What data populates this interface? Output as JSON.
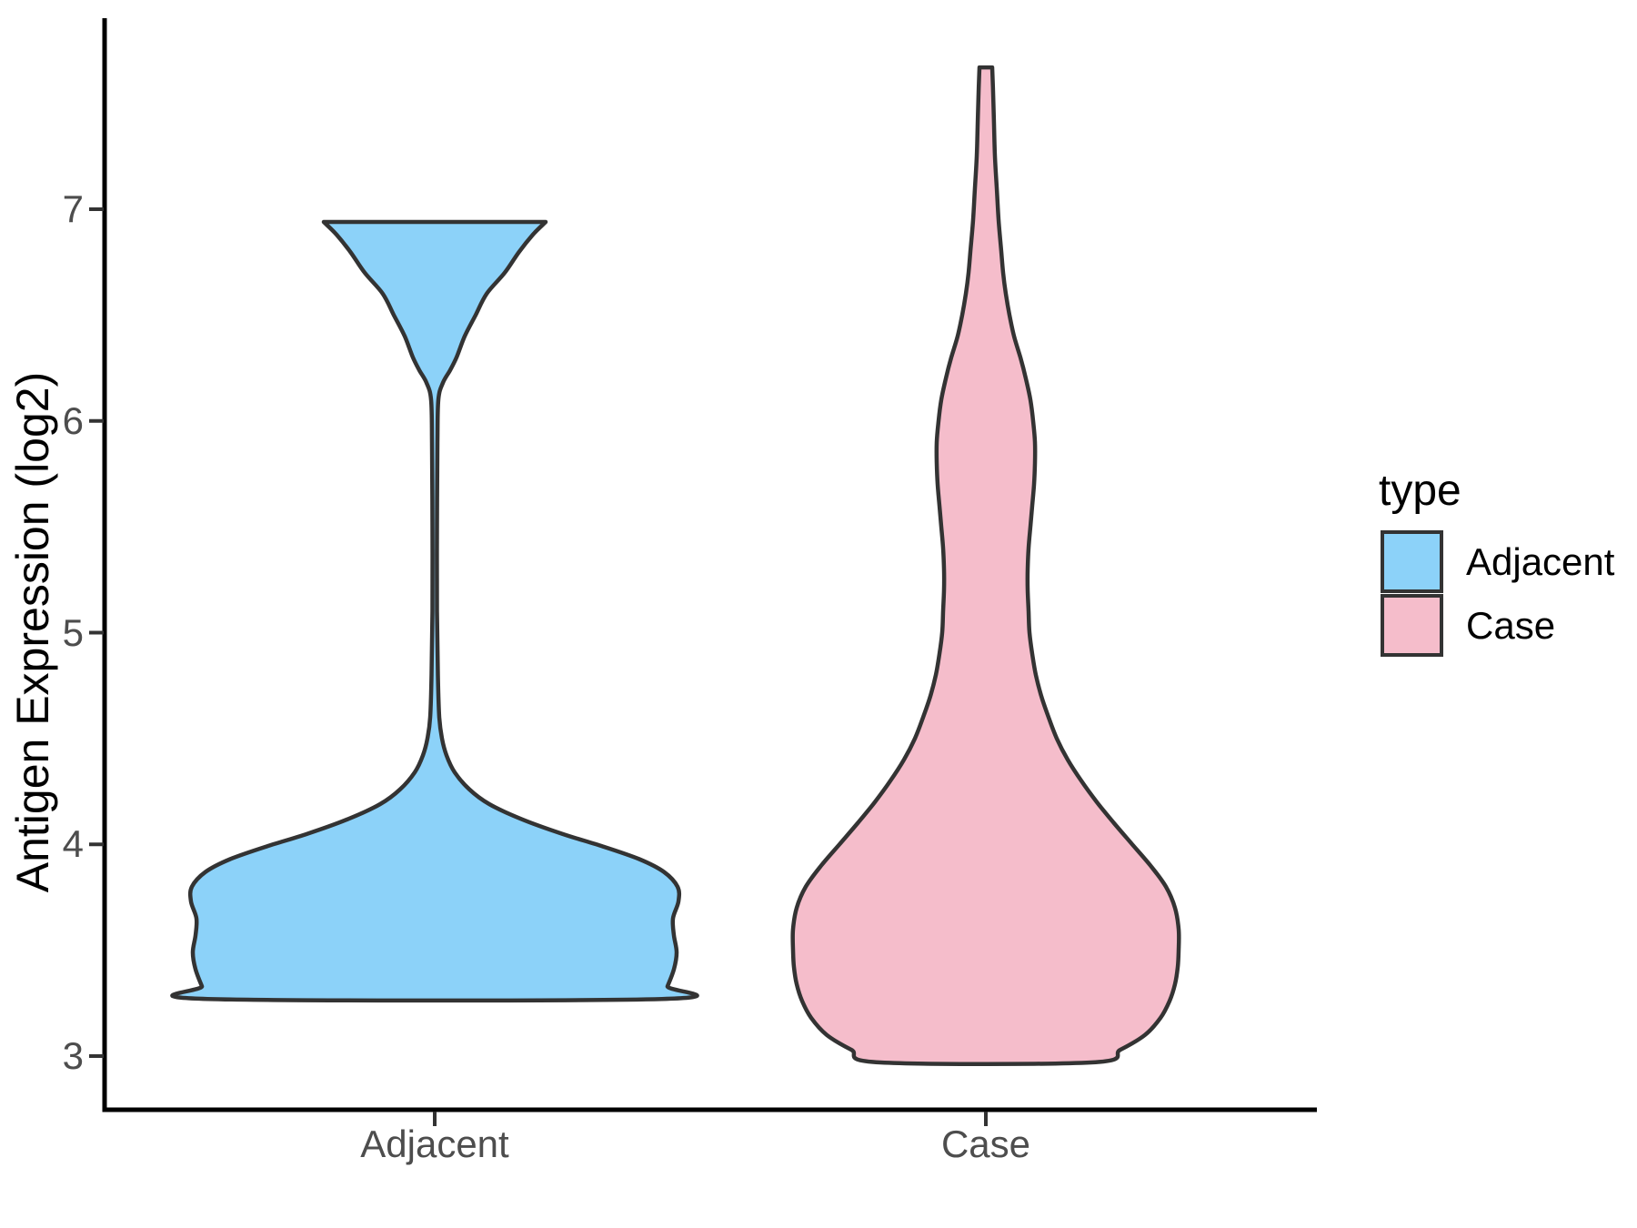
{
  "chart_data": {
    "type": "violin",
    "title": "",
    "xlabel": "",
    "ylabel": "Antigen Expression (log2)",
    "categories": [
      "Adjacent",
      "Case"
    ],
    "y_ticks": [
      7,
      6,
      5,
      4,
      3
    ],
    "ylim_shown": [
      2.75,
      7.9
    ],
    "grid": "off",
    "legend": {
      "title": "type",
      "position": "right",
      "entries": [
        {
          "label": "Adjacent",
          "color": "#8CD2F9"
        },
        {
          "label": "Case",
          "color": "#F5BDCB"
        }
      ]
    },
    "series": [
      {
        "name": "Adjacent",
        "fill": "#8CD2F9",
        "outline": "#333333",
        "value_min": 3.27,
        "value_max": 6.94,
        "profile": [
          [
            6.94,
            122
          ],
          [
            6.88,
            108
          ],
          [
            6.8,
            93
          ],
          [
            6.7,
            77
          ],
          [
            6.6,
            57
          ],
          [
            6.5,
            45
          ],
          [
            6.4,
            33
          ],
          [
            6.3,
            24
          ],
          [
            6.24,
            17
          ],
          [
            6.18,
            9
          ],
          [
            6.1,
            4
          ],
          [
            5.9,
            3
          ],
          [
            5.5,
            2.5
          ],
          [
            5.1,
            2.5
          ],
          [
            4.8,
            3.5
          ],
          [
            4.6,
            5
          ],
          [
            4.5,
            8
          ],
          [
            4.42,
            13
          ],
          [
            4.34,
            22
          ],
          [
            4.26,
            38
          ],
          [
            4.19,
            60
          ],
          [
            4.12,
            95
          ],
          [
            4.05,
            140
          ],
          [
            3.99,
            185
          ],
          [
            3.93,
            225
          ],
          [
            3.87,
            252
          ],
          [
            3.8,
            267
          ],
          [
            3.73,
            268
          ],
          [
            3.65,
            262
          ],
          [
            3.57,
            263
          ],
          [
            3.49,
            266
          ],
          [
            3.41,
            263
          ],
          [
            3.33,
            256
          ],
          [
            3.27,
            250
          ]
        ]
      },
      {
        "name": "Case",
        "fill": "#F5BDCB",
        "outline": "#333333",
        "value_min": 2.97,
        "value_max": 7.67,
        "profile": [
          [
            7.67,
            7
          ],
          [
            7.55,
            8
          ],
          [
            7.4,
            9
          ],
          [
            7.25,
            10
          ],
          [
            7.1,
            12
          ],
          [
            6.95,
            14
          ],
          [
            6.8,
            17
          ],
          [
            6.7,
            19
          ],
          [
            6.6,
            22
          ],
          [
            6.5,
            26
          ],
          [
            6.4,
            31
          ],
          [
            6.3,
            38
          ],
          [
            6.2,
            44
          ],
          [
            6.1,
            49
          ],
          [
            6.0,
            52
          ],
          [
            5.9,
            54
          ],
          [
            5.8,
            54
          ],
          [
            5.7,
            53
          ],
          [
            5.6,
            51
          ],
          [
            5.5,
            49
          ],
          [
            5.4,
            47
          ],
          [
            5.3,
            46
          ],
          [
            5.2,
            46
          ],
          [
            5.1,
            47
          ],
          [
            5.0,
            48
          ],
          [
            4.9,
            51
          ],
          [
            4.8,
            55
          ],
          [
            4.7,
            61
          ],
          [
            4.6,
            69
          ],
          [
            4.5,
            78
          ],
          [
            4.4,
            90
          ],
          [
            4.3,
            105
          ],
          [
            4.2,
            122
          ],
          [
            4.1,
            141
          ],
          [
            4.0,
            161
          ],
          [
            3.9,
            181
          ],
          [
            3.8,
            198
          ],
          [
            3.7,
            208
          ],
          [
            3.6,
            212
          ],
          [
            3.5,
            212
          ],
          [
            3.42,
            211
          ],
          [
            3.34,
            208
          ],
          [
            3.26,
            202
          ],
          [
            3.18,
            192
          ],
          [
            3.1,
            175
          ],
          [
            3.03,
            148
          ],
          [
            2.97,
            116
          ]
        ]
      }
    ]
  },
  "colors": {
    "background": "#FFFFFF",
    "axis_line": "#000000",
    "tick_mark": "#333333",
    "tick_text": "#4D4D4D",
    "violin_outline": "#333333"
  }
}
